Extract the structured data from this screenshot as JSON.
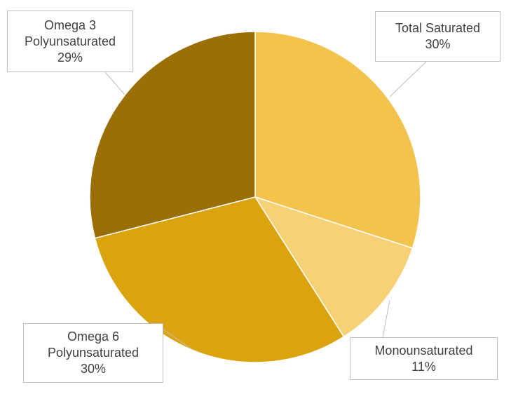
{
  "chart_data": {
    "type": "pie",
    "title": "",
    "start_angle_deg": 0,
    "direction": "clockwise",
    "slices": [
      {
        "name": "Total Saturated",
        "value": 30,
        "label": "30%",
        "color": "#F2C44E"
      },
      {
        "name": "Monounsaturated",
        "value": 11,
        "label": "11%",
        "color": "#F6D176"
      },
      {
        "name": "Omega 6 Polyunsaturated",
        "name_lines": [
          "Omega 6",
          "Polyunsaturated"
        ],
        "value": 30,
        "label": "30%",
        "color": "#DBA30E"
      },
      {
        "name": "Omega 3 Polyunsaturated",
        "name_lines": [
          "Omega 3",
          "Polyunsaturated"
        ],
        "value": 29,
        "label": "29%",
        "color": "#9A6F08"
      }
    ]
  }
}
